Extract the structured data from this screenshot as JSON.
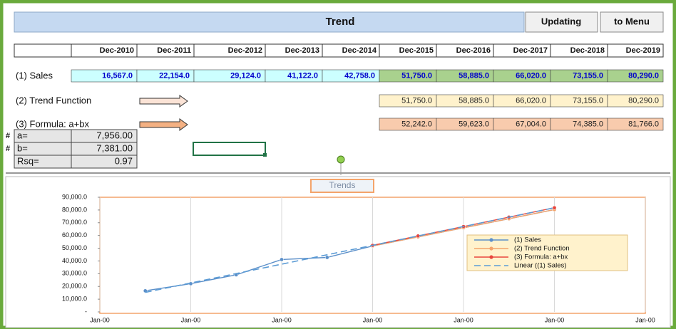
{
  "header": {
    "title": "Trend",
    "buttons": [
      "Updating",
      "to Menu"
    ]
  },
  "sheet": {
    "columns": [
      "Dec-2010",
      "Dec-2011",
      "Dec-2012",
      "Dec-2013",
      "Dec-2014",
      "Dec-2015",
      "Dec-2016",
      "Dec-2017",
      "Dec-2018",
      "Dec-2019"
    ],
    "sales": {
      "label": "(1) Sales",
      "values": [
        "16,567.0",
        "22,154.0",
        "29,124.0",
        "41,122.0",
        "42,758.0",
        "51,750.0",
        "58,885.0",
        "66,020.0",
        "73,155.0",
        "80,290.0"
      ]
    },
    "trend": {
      "label": "(2) Trend Function",
      "values": [
        "51,750.0",
        "58,885.0",
        "66,020.0",
        "73,155.0",
        "80,290.0"
      ]
    },
    "formula": {
      "label": "(3) Formula: a+bx",
      "values": [
        "52,242.0",
        "59,623.0",
        "67,004.0",
        "74,385.0",
        "81,766.0"
      ]
    },
    "params": [
      {
        "marker": "#",
        "label": "a=",
        "value": "7,956.00"
      },
      {
        "marker": "#",
        "label": "b=",
        "value": "7,381.00"
      },
      {
        "label": "Rsq=",
        "value": "0.97"
      }
    ]
  },
  "chart_data": {
    "type": "line",
    "title": "Trends",
    "x": [
      1,
      2,
      3,
      4,
      5,
      6,
      7,
      8,
      9,
      10
    ],
    "series": [
      {
        "name": "(1) Sales",
        "color": "#5b8fc9",
        "marker": true,
        "values": [
          16567,
          22154,
          29124,
          41122,
          42758,
          51750,
          58885,
          66020,
          73155,
          80290
        ]
      },
      {
        "name": "(2) Trend Function",
        "color": "#f4a46b",
        "marker": true,
        "values": [
          null,
          null,
          null,
          null,
          null,
          51750,
          58885,
          66020,
          73155,
          80290
        ]
      },
      {
        "name": "(3) Formula: a+bx",
        "color": "#e8453c",
        "marker": true,
        "values": [
          null,
          null,
          null,
          null,
          null,
          52242,
          59623,
          67004,
          74385,
          81766
        ]
      },
      {
        "name": "Linear ((1) Sales)",
        "color": "#5b9bd5",
        "dashed": true,
        "values": [
          15337,
          22718,
          30099,
          37480,
          44861,
          52242,
          59623,
          67004,
          74385,
          81766
        ]
      }
    ],
    "xlim": [
      0,
      12
    ],
    "xticks": [
      {
        "value": 0,
        "label": "Jan-00"
      },
      {
        "value": 2,
        "label": "Jan-00"
      },
      {
        "value": 4,
        "label": "Jan-00"
      },
      {
        "value": 6,
        "label": "Jan-00"
      },
      {
        "value": 8,
        "label": "Jan-00"
      },
      {
        "value": 10,
        "label": "Jan-00"
      },
      {
        "value": 12,
        "label": "Jan-00"
      }
    ],
    "ylim": [
      0,
      90000
    ],
    "yticks": [
      {
        "value": 0,
        "label": "-"
      },
      {
        "value": 10000,
        "label": "10,000.0"
      },
      {
        "value": 20000,
        "label": "20,000.0"
      },
      {
        "value": 30000,
        "label": "30,000.0"
      },
      {
        "value": 40000,
        "label": "40,000.0"
      },
      {
        "value": 50000,
        "label": "50,000.0"
      },
      {
        "value": 60000,
        "label": "60,000.0"
      },
      {
        "value": 70000,
        "label": "70,000.0"
      },
      {
        "value": 80000,
        "label": "80,000.0"
      },
      {
        "value": 90000,
        "label": "90,000.0"
      }
    ],
    "xgrid": true,
    "legend": "right"
  }
}
